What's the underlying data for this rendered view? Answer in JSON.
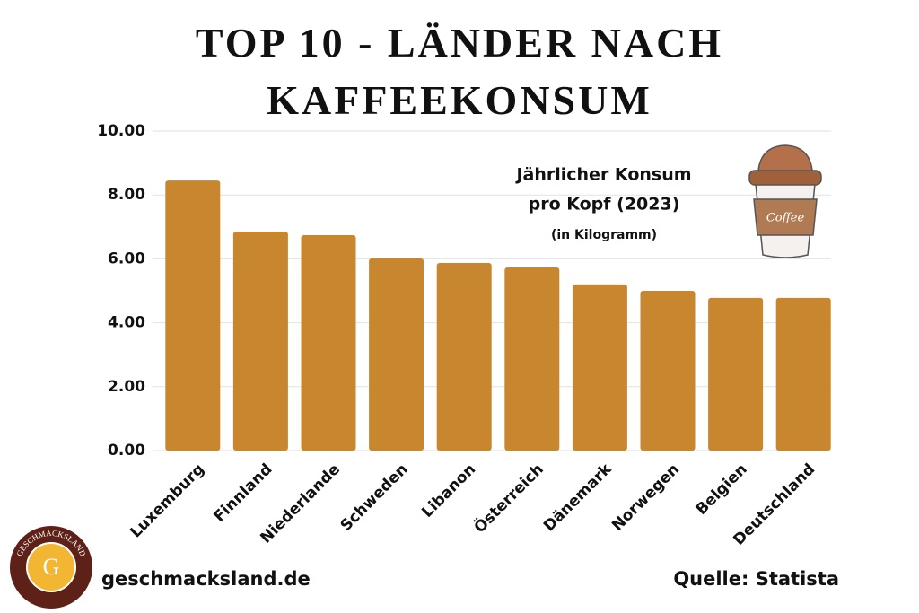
{
  "chart_data": {
    "type": "bar",
    "title": "TOP 10 - LÄNDER NACH KAFFEEKONSUM",
    "categories": [
      "Luxemburg",
      "Finnland",
      "Niederlande",
      "Schweden",
      "Libanon",
      "Österreich",
      "Dänemark",
      "Norwegen",
      "Belgien",
      "Deutschland"
    ],
    "values": [
      8.45,
      6.85,
      6.74,
      6.01,
      5.87,
      5.73,
      5.2,
      5.0,
      4.78,
      4.78
    ],
    "color": "#c8862f",
    "ylim": [
      0,
      10
    ],
    "yticks": [
      {
        "value": 0,
        "label": "0.00"
      },
      {
        "value": 2,
        "label": "2.00"
      },
      {
        "value": 4,
        "label": "4.00"
      },
      {
        "value": 6,
        "label": "6.00"
      },
      {
        "value": 8,
        "label": "8.00"
      },
      {
        "value": 10,
        "label": "10.00"
      }
    ],
    "grid": true,
    "annotations": [
      "Jährlicher Konsum",
      "pro Kopf (2023)",
      "(in Kilogramm)"
    ]
  },
  "cup_label": "Coffee",
  "logo": {
    "name": "GESCHMACKSLAND",
    "letter": "G"
  },
  "footer": {
    "website": "geschmacksland.de",
    "source": "Quelle: Statista"
  }
}
